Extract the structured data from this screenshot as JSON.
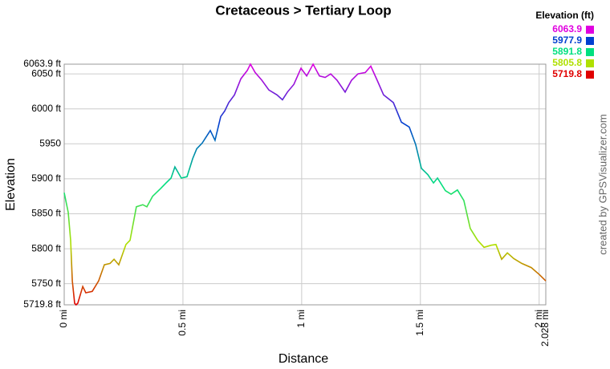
{
  "chart_data": {
    "type": "line",
    "title": "Cretaceous > Tertiary Loop",
    "x_label": "Distance",
    "y_label": "Elevation",
    "credit": "created by GPSVisualizer.com",
    "legend_title": "Elevation (ft)",
    "colorscale": [
      {
        "value": 6063.9,
        "color": "#e000e0"
      },
      {
        "value": 5977.9,
        "color": "#0040d0"
      },
      {
        "value": 5891.8,
        "color": "#00e080"
      },
      {
        "value": 5805.8,
        "color": "#b0e000"
      },
      {
        "value": 5719.8,
        "color": "#e00000"
      }
    ],
    "grid": true,
    "xlim": [
      0,
      2.028
    ],
    "ylim": [
      5719.8,
      6063.9
    ],
    "xticks": [
      {
        "value": 0,
        "label": "0 mi"
      },
      {
        "value": 0.5,
        "label": "0.5 mi"
      },
      {
        "value": 1,
        "label": "1 mi"
      },
      {
        "value": 1.5,
        "label": "1.5 mi"
      },
      {
        "value": 2,
        "label": "2 mi"
      },
      {
        "value": 2.028,
        "label": "2.028 mi"
      }
    ],
    "yticks": [
      {
        "value": 5719.8,
        "label": "5719.8 ft"
      },
      {
        "value": 5750,
        "label": "5750 ft"
      },
      {
        "value": 5800,
        "label": "5800 ft"
      },
      {
        "value": 5850,
        "label": "5850 ft"
      },
      {
        "value": 5900,
        "label": "5900 ft"
      },
      5950,
      {
        "value": 6000,
        "label": "6000 ft"
      },
      {
        "value": 6050,
        "label": "6050 ft"
      },
      {
        "value": 6063.9,
        "label": "6063.9 ft"
      }
    ],
    "x": [
      0,
      0.017,
      0.027,
      0.034,
      0.044,
      0.05,
      0.057,
      0.078,
      0.091,
      0.118,
      0.145,
      0.169,
      0.193,
      0.21,
      0.23,
      0.26,
      0.277,
      0.304,
      0.331,
      0.348,
      0.372,
      0.406,
      0.429,
      0.45,
      0.466,
      0.493,
      0.517,
      0.541,
      0.558,
      0.581,
      0.615,
      0.635,
      0.659,
      0.676,
      0.693,
      0.717,
      0.744,
      0.771,
      0.784,
      0.804,
      0.832,
      0.862,
      0.896,
      0.919,
      0.94,
      0.967,
      0.997,
      1.021,
      1.048,
      1.075,
      1.099,
      1.122,
      1.149,
      1.183,
      1.21,
      1.237,
      1.268,
      1.291,
      1.318,
      1.345,
      1.386,
      1.42,
      1.453,
      1.48,
      1.504,
      1.531,
      1.555,
      1.572,
      1.605,
      1.629,
      1.656,
      1.683,
      1.71,
      1.741,
      1.768,
      1.798,
      1.818,
      1.842,
      1.866,
      1.893,
      1.927,
      1.967,
      2.001,
      2.028
    ],
    "series": [
      {
        "name": "Elevation",
        "values": [
          5880,
          5852,
          5812,
          5754,
          5722,
          5719.8,
          5722,
          5746,
          5737,
          5739,
          5754,
          5777,
          5779,
          5785,
          5777,
          5806,
          5812,
          5860,
          5863,
          5860,
          5875,
          5886,
          5894,
          5901,
          5917,
          5901,
          5903,
          5929,
          5943,
          5951,
          5969,
          5955,
          5989,
          5997,
          6009,
          6020,
          6043,
          6055,
          6063.9,
          6052,
          6041,
          6027,
          6020,
          6013,
          6024,
          6035,
          6058,
          6047,
          6063.9,
          6047,
          6045,
          6050,
          6041,
          6024,
          6041,
          6050,
          6052,
          6061,
          6041,
          6020,
          6009,
          5981,
          5974,
          5949,
          5915,
          5906,
          5894,
          5901,
          5883,
          5878,
          5884,
          5869,
          5829,
          5812,
          5802,
          5805,
          5806,
          5785,
          5794,
          5786,
          5779,
          5773,
          5763,
          5754
        ]
      }
    ]
  }
}
